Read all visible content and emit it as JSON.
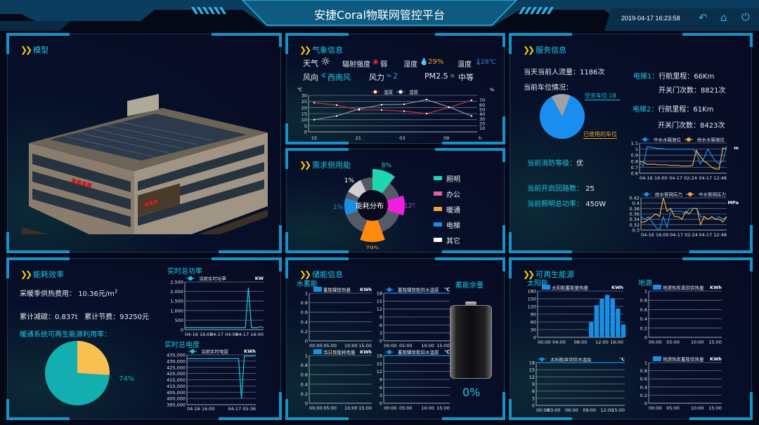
{
  "header": {
    "title": "安捷Coral物联网管控平台",
    "datetime": "2019-04-17 16:23:58",
    "icons": [
      "back-icon",
      "home-icon",
      "power-icon"
    ]
  },
  "colors": {
    "accent": "#1ec8e0",
    "frame": "#1593c9",
    "chevron": "#f5c518",
    "bg": "#050817"
  },
  "model": {
    "title": "模型"
  },
  "weather": {
    "title": "气象信息",
    "weather_label": "天气",
    "weather_icon": "sun-icon",
    "radiation_label": "辐射强度",
    "radiation_value": "弱",
    "humidity_label": "湿度",
    "humidity_value": "29%",
    "temperature_label": "温度",
    "temperature_value": "28℃",
    "wind_dir_label": "风向",
    "wind_dir_value": "西南风",
    "wind_force_label": "风力",
    "wind_force_value": "2",
    "pm_label": "PM2.5",
    "pm_value": "中等"
  },
  "demand": {
    "title": "需求侧用能",
    "center_label": "能耗分布",
    "legend": [
      "照明",
      "办公",
      "暖通",
      "电梯",
      "其它"
    ]
  },
  "service": {
    "title": "服务信息",
    "flow_label": "当天当前人流量：",
    "flow_value": "1186次",
    "parking_label": "当前车位情况：",
    "parking_free_label": "空余车位 18",
    "parking_used_label": "已使用的车位",
    "elevator1_label": "电梯1：",
    "elevator1_mileage": "行航里程：66Km",
    "elevator1_doors": "开关门次数：8821次",
    "elevator2_label": "电梯2：",
    "elevator2_mileage": "行航里程：61Km",
    "elevator2_doors": "开关门次数：8423次",
    "fire_label": "当前消防等级：",
    "fire_value": "优",
    "circuits_label": "当前开启回路数：",
    "circuits_value": "25",
    "lighting_label": "当前照明总功率：",
    "lighting_value": "450W"
  },
  "efficiency": {
    "title": "能耗效率",
    "heating_fee_label": "采暖季供热费用：",
    "heating_fee_value": "10.36元/m",
    "heating_fee_sup": "2",
    "carbon_label": "累计减碳：",
    "carbon_value": "0.837t",
    "saving_label": "累计节费：",
    "saving_value": "93250元",
    "renewable_rate_label": "暖通系统可再生能源利用率：",
    "renewable_rate_value": "74%",
    "power_title": "实时总功率",
    "energy_title": "实时总电度"
  },
  "storage": {
    "title": "储能信息",
    "water_label": "水蓄能",
    "remaining_label": "蓄能余量",
    "remaining_value": "0%",
    "remaining_fraction": 0
  },
  "renewable": {
    "title": "可再生能源",
    "solar_label": "太阳能",
    "ground_label": "地源"
  },
  "chart_data": [
    {
      "id": "weather",
      "type": "line",
      "unit_left": "℃",
      "unit_right": "%",
      "x_unit": "h",
      "ylim": [
        0,
        30
      ],
      "y_ticks": [
        "0",
        "5",
        "10",
        "15",
        "20",
        "25",
        "30"
      ],
      "ylim_right": [
        2,
        80
      ],
      "y_ticks_right": [
        "10",
        "20",
        "30",
        "40",
        "50",
        "60",
        "70"
      ],
      "x_ticks": [
        "15",
        "21",
        "03",
        "09"
      ],
      "x": [
        "15",
        "18",
        "21",
        "00",
        "03",
        "06",
        "09",
        "12"
      ],
      "series": [
        {
          "name": "温度",
          "color": "#c8323c",
          "axis": "left",
          "values": [
            24,
            22,
            18,
            18,
            17,
            15,
            20,
            26
          ]
        },
        {
          "name": "湿度",
          "color": "#8a94a8",
          "axis": "right",
          "values": [
            28,
            36,
            51,
            60,
            61,
            71,
            55,
            36
          ]
        }
      ]
    },
    {
      "id": "demand",
      "type": "pie",
      "values": [
        8,
        12,
        79,
        1,
        1
      ],
      "labels": [
        "8%",
        "12%",
        "79%",
        "1%",
        "1%"
      ],
      "colors": [
        "#1ed7b0",
        "#f01ee0",
        "#ff8a10",
        "#1a8ee0",
        "#d0d0d0"
      ],
      "label_colors": [
        "#1ed7b0",
        "#b04ad0",
        "#f0a040",
        "#1a8ee0",
        "#ffffff"
      ]
    },
    {
      "id": "parking",
      "type": "pie",
      "free": 18,
      "used_share": 0.86,
      "colors": [
        "#1a8ef0",
        "#a0a0a8"
      ]
    },
    {
      "id": "water-level",
      "type": "line",
      "unit": "m",
      "ylim": [
        0.6,
        1.1
      ],
      "y_ticks": [
        "0.6",
        "0.7",
        "0.8",
        "0.9",
        "1",
        "1.1"
      ],
      "x_ticks": [
        "04-16 16:00",
        "04-17 02:24",
        "04-17 12:48"
      ],
      "series": [
        {
          "name": "中水水箱液位",
          "color": "#1a8ee0",
          "values": [
            0.78,
            0.72,
            1.04,
            1.03,
            1.02,
            1.01,
            1.01,
            1.0,
            1.0,
            1.0,
            1.0,
            1.0,
            1.0,
            1.0,
            1.0,
            0.95,
            0.75,
            0.85,
            1.0,
            0.9,
            0.8,
            0.76,
            0.8,
            1.05
          ]
        },
        {
          "name": "给水水箱液位",
          "color": "#f0a840",
          "values": [
            0.8,
            0.78,
            0.75,
            0.75,
            0.75,
            0.74,
            0.74,
            0.74,
            0.73,
            0.73,
            0.73,
            0.72,
            0.72,
            0.72,
            0.73,
            0.98,
            0.88,
            0.8,
            0.76,
            0.7,
            0.67,
            0.67,
            1.02,
            1.0
          ]
        }
      ]
    },
    {
      "id": "pressure",
      "type": "line",
      "unit": "MPa",
      "ylim": [
        0.3,
        0.42
      ],
      "y_ticks": [
        "0.3",
        "0.32",
        "0.34",
        "0.36",
        "0.38",
        "0.4",
        "0.42"
      ],
      "x_ticks": [
        "04-16 16:00",
        "04-17 02:24",
        "04-17 12:48"
      ],
      "series": [
        {
          "name": "给水管网压力",
          "color": "#1a8ee0",
          "values": [
            0.35,
            0.34,
            0.35,
            0.33,
            0.31,
            0.3,
            0.35,
            0.31,
            0.37,
            0.37,
            0.37,
            0.37,
            0.36,
            0.38,
            0.38,
            0.38,
            0.35,
            0.35,
            0.34,
            0.35,
            0.34,
            0.35,
            0.34,
            0.35
          ]
        },
        {
          "name": "中水管网压力",
          "color": "#f0a840",
          "values": [
            0.33,
            0.33,
            0.34,
            0.35,
            0.36,
            0.35,
            0.42,
            0.37,
            0.38,
            0.35,
            0.35,
            0.34,
            0.37,
            0.36,
            0.38,
            0.38,
            0.32,
            0.35,
            0.34,
            0.35,
            0.34,
            0.34,
            0.33,
            0.35
          ]
        }
      ]
    },
    {
      "id": "power",
      "type": "line",
      "unit": "KW",
      "ylim": [
        0,
        2500
      ],
      "y_ticks": [
        "0",
        "500",
        "1,000",
        "1,500",
        "2,000",
        "2,500"
      ],
      "x_ticks": [
        "04-16 16:00",
        "04-17 04:00",
        "04-17 16:00"
      ],
      "series": [
        {
          "name": "当前实时功率",
          "color": "#1ec8e0",
          "values": [
            100,
            100,
            100,
            100,
            100,
            100,
            100,
            100,
            100,
            100,
            100,
            100,
            100,
            100,
            100,
            100,
            100,
            100,
            100,
            100,
            100,
            2200,
            100,
            100,
            100,
            150,
            100
          ]
        }
      ]
    },
    {
      "id": "energy",
      "type": "line",
      "unit": "KWh",
      "ylim": [
        395000,
        435000
      ],
      "y_ticks": [
        "395,000",
        "400,000",
        "405,000",
        "410,000",
        "415,000",
        "420,000",
        "425,000",
        "430,000",
        "435,000"
      ],
      "x_ticks": [
        "04-16 16:00",
        "04-17 05:36"
      ],
      "series": [
        {
          "name": "当前实时电度",
          "color": "#1ec8e0",
          "values": [
            432000,
            432000,
            432000,
            432000,
            432000,
            432000,
            432000,
            432000,
            432000,
            432000,
            432000,
            432000,
            432000,
            432000,
            432000,
            432000,
            432000,
            432000,
            432000,
            400000,
            434000,
            434000,
            434000,
            434000,
            434500
          ]
        }
      ]
    },
    {
      "id": "renewable-rate",
      "type": "pie",
      "values": [
        74,
        26
      ],
      "colors": [
        "#12aeb0",
        "#f7c050"
      ]
    },
    {
      "id": "storage-heat",
      "type": "bar",
      "unit": "KWh",
      "ylim": [
        0,
        1
      ],
      "y_ticks": [
        "0",
        "0.2",
        "0.4",
        "0.6",
        "0.8",
        "1"
      ],
      "x_ticks": [
        "00:00",
        "05:00",
        "10:00",
        "15:00"
      ],
      "series": [
        {
          "name": "蓄能罐放热量",
          "color": "#1a8ee0",
          "values": []
        }
      ]
    },
    {
      "id": "storage-supply-temp",
      "type": "line",
      "unit": "℃",
      "ylim": [
        0,
        18
      ],
      "y_ticks": [
        "0",
        "3",
        "6",
        "9",
        "12",
        "15",
        "18"
      ],
      "x_ticks": [
        "00:00",
        "05:00",
        "10:00",
        "15:00"
      ],
      "series": [
        {
          "name": "蓄能罐放能供水温度",
          "color": "#1a8ee0",
          "values": [
            18,
            18,
            18,
            18
          ]
        }
      ]
    },
    {
      "id": "storage-power",
      "type": "bar",
      "unit": "KWh",
      "ylim": [
        0,
        1
      ],
      "y_ticks": [
        "0",
        "0.2",
        "0.4",
        "0.6",
        "0.8",
        "1"
      ],
      "x_ticks": [
        "00:00",
        "05:00",
        "10:00",
        "15:00"
      ],
      "series": [
        {
          "name": "当日放能耗电量",
          "color": "#1a8ee0",
          "values": []
        }
      ]
    },
    {
      "id": "storage-return-temp",
      "type": "line",
      "unit": "℃",
      "ylim": [
        0,
        18
      ],
      "y_ticks": [
        "0",
        "3",
        "6",
        "9",
        "12",
        "15",
        "18"
      ],
      "x_ticks": [
        "00:00",
        "05:00",
        "10:00",
        "15:00"
      ],
      "series": [
        {
          "name": "蓄能罐放能回水温度",
          "color": "#1a8ee0",
          "values": [
            18,
            18,
            18,
            18
          ]
        }
      ]
    },
    {
      "id": "solar-heat",
      "type": "bar",
      "unit": "KWh",
      "ylim": [
        0,
        180
      ],
      "y_ticks": [
        "0",
        "30",
        "60",
        "90",
        "120",
        "150",
        "180"
      ],
      "x_ticks": [
        "00:00",
        "04:00",
        "08:00",
        "12:00",
        "16:00"
      ],
      "x_count": 17,
      "series": [
        {
          "name": "太阳能蓄能量热量",
          "color": "#1a8ee0",
          "values": [
            0,
            0,
            0,
            0,
            0,
            0,
            0,
            0,
            0,
            0,
            60,
            125,
            150,
            165,
            152,
            112,
            50
          ]
        }
      ]
    },
    {
      "id": "solar-temp",
      "type": "line",
      "unit": "℃",
      "ylim": [
        0,
        18
      ],
      "y_ticks": [
        "0",
        "3",
        "6",
        "9",
        "12",
        "15",
        "18"
      ],
      "x_ticks": [
        "00:00",
        "03:00",
        "06:00",
        "09:00",
        "12:00",
        "15:00"
      ],
      "series": [
        {
          "name": "太阳能直供供水温度",
          "color": "#1a8ee0",
          "values": [
            18,
            18,
            18,
            18
          ]
        }
      ]
    },
    {
      "id": "ground-direct",
      "type": "bar",
      "unit": "KWh",
      "ylim": [
        0,
        1
      ],
      "y_ticks": [
        "0",
        "0.2",
        "0.4",
        "0.6",
        "0.8",
        "1"
      ],
      "x_ticks": [
        "00:00",
        "05:00",
        "10:00",
        "15:00"
      ],
      "series": [
        {
          "name": "地源热泵直供供热量",
          "color": "#1a8ee0",
          "values": []
        }
      ]
    },
    {
      "id": "ground-storage",
      "type": "bar",
      "unit": "KWh",
      "ylim": [
        0,
        1
      ],
      "y_ticks": [
        "0",
        "0.2",
        "0.4",
        "0.6",
        "0.8",
        "1"
      ],
      "x_ticks": [
        "00:00",
        "05:00",
        "10:00",
        "15:00"
      ],
      "series": [
        {
          "name": "地源热泵蓄能供热量",
          "color": "#1a8ee0",
          "values": []
        }
      ]
    }
  ]
}
